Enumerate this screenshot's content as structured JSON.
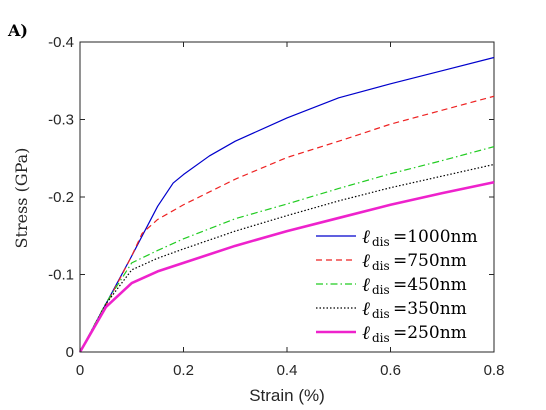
{
  "panel_label": "A)",
  "chart_data": {
    "type": "line",
    "xlabel": "Strain (%)",
    "ylabel": "Stress (GPa)",
    "xlim": [
      0,
      0.8
    ],
    "ylim": [
      0,
      -0.4
    ],
    "y_axis_inverted": true,
    "xticks": [
      0,
      0.2,
      0.4,
      0.6,
      0.8
    ],
    "xtick_labels": [
      "0",
      "0.2",
      "0.4",
      "0.6",
      "0.8"
    ],
    "yticks": [
      0,
      -0.1,
      -0.2,
      -0.3,
      -0.4
    ],
    "ytick_labels": [
      "0",
      "-0.1",
      "-0.2",
      "-0.3",
      "-0.4"
    ],
    "grid": false,
    "legend_position": "bottom-right",
    "legend_symbol": "ℓ",
    "legend_subscript": "dis",
    "series": [
      {
        "name": "=1000nm",
        "color": "#0000cc",
        "dash": "solid",
        "width": 1.2,
        "x": [
          0,
          0.05,
          0.1,
          0.15,
          0.18,
          0.2,
          0.25,
          0.3,
          0.4,
          0.5,
          0.6,
          0.7,
          0.8
        ],
        "y": [
          0,
          -0.062,
          -0.124,
          -0.188,
          -0.218,
          -0.229,
          -0.253,
          -0.272,
          -0.302,
          -0.328,
          -0.346,
          -0.363,
          -0.38
        ]
      },
      {
        "name": "=750nm",
        "color": "#ee2222",
        "dash": "dashed",
        "width": 1.2,
        "x": [
          0,
          0.05,
          0.1,
          0.12,
          0.15,
          0.2,
          0.3,
          0.4,
          0.5,
          0.6,
          0.7,
          0.8
        ],
        "y": [
          0,
          -0.06,
          -0.124,
          -0.153,
          -0.171,
          -0.19,
          -0.223,
          -0.251,
          -0.272,
          -0.294,
          -0.312,
          -0.33
        ]
      },
      {
        "name": "=450nm",
        "color": "#22cc22",
        "dash": "dashdot",
        "width": 1.2,
        "x": [
          0,
          0.05,
          0.1,
          0.15,
          0.2,
          0.3,
          0.4,
          0.5,
          0.6,
          0.7,
          0.8
        ],
        "y": [
          0,
          -0.063,
          -0.115,
          -0.131,
          -0.146,
          -0.172,
          -0.191,
          -0.211,
          -0.23,
          -0.247,
          -0.265
        ]
      },
      {
        "name": "=350nm",
        "color": "#000000",
        "dash": "dotted",
        "width": 1.2,
        "x": [
          0,
          0.05,
          0.1,
          0.15,
          0.2,
          0.3,
          0.4,
          0.5,
          0.6,
          0.7,
          0.8
        ],
        "y": [
          0,
          -0.062,
          -0.106,
          -0.121,
          -0.133,
          -0.156,
          -0.176,
          -0.195,
          -0.212,
          -0.227,
          -0.242
        ]
      },
      {
        "name": "=250nm",
        "color": "#ee22cc",
        "dash": "solid",
        "width": 2.6,
        "x": [
          0,
          0.05,
          0.1,
          0.15,
          0.2,
          0.3,
          0.4,
          0.5,
          0.6,
          0.7,
          0.8
        ],
        "y": [
          0,
          -0.058,
          -0.089,
          -0.104,
          -0.115,
          -0.137,
          -0.156,
          -0.173,
          -0.19,
          -0.205,
          -0.219
        ]
      }
    ]
  }
}
